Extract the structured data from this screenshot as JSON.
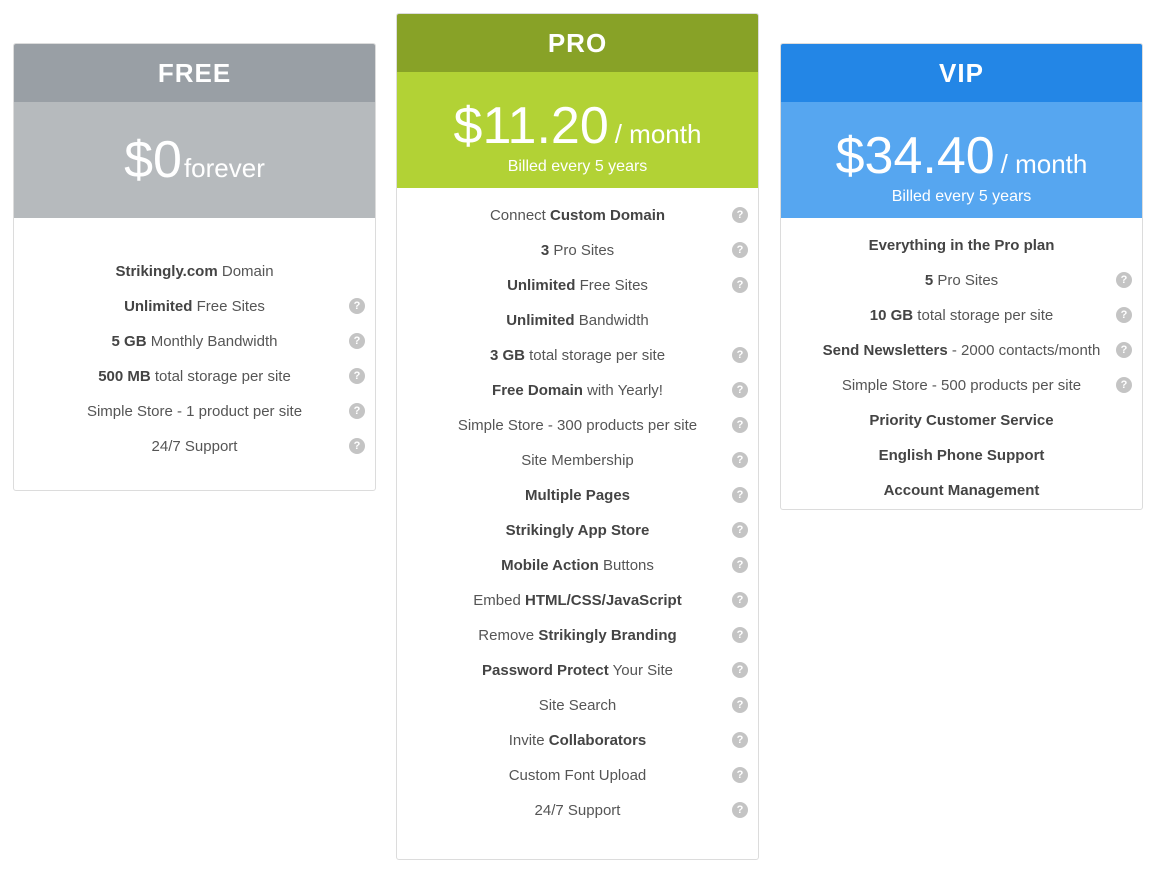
{
  "plans": [
    {
      "id": "free",
      "name": "FREE",
      "amount": "$0",
      "period": "forever",
      "billing": "",
      "header_color": "#999fa5",
      "price_color": "#b6babd",
      "features": [
        {
          "segments": [
            {
              "text": "Strikingly.com",
              "bold": true
            },
            {
              "text": " Domain",
              "bold": false
            }
          ],
          "help": false
        },
        {
          "segments": [
            {
              "text": "Unlimited",
              "bold": true
            },
            {
              "text": " Free Sites",
              "bold": false
            }
          ],
          "help": true
        },
        {
          "segments": [
            {
              "text": "5 GB",
              "bold": true
            },
            {
              "text": " Monthly Bandwidth",
              "bold": false
            }
          ],
          "help": true
        },
        {
          "segments": [
            {
              "text": "500 MB",
              "bold": true
            },
            {
              "text": " total storage per site",
              "bold": false
            }
          ],
          "help": true
        },
        {
          "segments": [
            {
              "text": "Simple Store - 1 product per site",
              "bold": false
            }
          ],
          "help": true
        },
        {
          "segments": [
            {
              "text": "24/7 Support",
              "bold": false
            }
          ],
          "help": true
        }
      ]
    },
    {
      "id": "pro",
      "name": "PRO",
      "amount": "$11.20",
      "period": "/ month",
      "billing": "Billed every 5 years",
      "header_color": "#88a227",
      "price_color": "#b2d235",
      "features": [
        {
          "segments": [
            {
              "text": "Connect ",
              "bold": false
            },
            {
              "text": "Custom Domain",
              "bold": true
            }
          ],
          "help": true
        },
        {
          "segments": [
            {
              "text": "3",
              "bold": true
            },
            {
              "text": " Pro Sites",
              "bold": false
            }
          ],
          "help": true
        },
        {
          "segments": [
            {
              "text": "Unlimited",
              "bold": true
            },
            {
              "text": " Free Sites",
              "bold": false
            }
          ],
          "help": true
        },
        {
          "segments": [
            {
              "text": "Unlimited",
              "bold": true
            },
            {
              "text": " Bandwidth",
              "bold": false
            }
          ],
          "help": false
        },
        {
          "segments": [
            {
              "text": "3 GB",
              "bold": true
            },
            {
              "text": " total storage per site",
              "bold": false
            }
          ],
          "help": true
        },
        {
          "segments": [
            {
              "text": "Free Domain",
              "bold": true
            },
            {
              "text": " with Yearly!",
              "bold": false
            }
          ],
          "help": true
        },
        {
          "segments": [
            {
              "text": "Simple Store - 300 products per site",
              "bold": false
            }
          ],
          "help": true
        },
        {
          "segments": [
            {
              "text": "Site Membership",
              "bold": false
            }
          ],
          "help": true
        },
        {
          "segments": [
            {
              "text": "Multiple Pages",
              "bold": true
            }
          ],
          "help": true
        },
        {
          "segments": [
            {
              "text": "Strikingly App Store",
              "bold": true
            }
          ],
          "help": true
        },
        {
          "segments": [
            {
              "text": "Mobile Action",
              "bold": true
            },
            {
              "text": " Buttons",
              "bold": false
            }
          ],
          "help": true
        },
        {
          "segments": [
            {
              "text": "Embed ",
              "bold": false
            },
            {
              "text": "HTML/CSS/JavaScript",
              "bold": true
            }
          ],
          "help": true
        },
        {
          "segments": [
            {
              "text": "Remove ",
              "bold": false
            },
            {
              "text": "Strikingly Branding",
              "bold": true
            }
          ],
          "help": true
        },
        {
          "segments": [
            {
              "text": "Password Protect",
              "bold": true
            },
            {
              "text": " Your Site",
              "bold": false
            }
          ],
          "help": true
        },
        {
          "segments": [
            {
              "text": "Site Search",
              "bold": false
            }
          ],
          "help": true
        },
        {
          "segments": [
            {
              "text": "Invite ",
              "bold": false
            },
            {
              "text": "Collaborators",
              "bold": true
            }
          ],
          "help": true
        },
        {
          "segments": [
            {
              "text": "Custom Font Upload",
              "bold": false
            }
          ],
          "help": true
        },
        {
          "segments": [
            {
              "text": "24/7 Support",
              "bold": false
            }
          ],
          "help": true
        }
      ]
    },
    {
      "id": "vip",
      "name": "VIP",
      "amount": "$34.40",
      "period": "/ month",
      "billing": "Billed every 5 years",
      "header_color": "#2386e6",
      "price_color": "#56a6f0",
      "features": [
        {
          "segments": [
            {
              "text": "Everything in the Pro plan",
              "bold": true
            }
          ],
          "help": false
        },
        {
          "segments": [
            {
              "text": "5",
              "bold": true
            },
            {
              "text": " Pro Sites",
              "bold": false
            }
          ],
          "help": true
        },
        {
          "segments": [
            {
              "text": "10 GB",
              "bold": true
            },
            {
              "text": " total storage per site",
              "bold": false
            }
          ],
          "help": true
        },
        {
          "segments": [
            {
              "text": "Send Newsletters",
              "bold": true
            },
            {
              "text": " - 2000 contacts/month",
              "bold": false
            }
          ],
          "help": true
        },
        {
          "segments": [
            {
              "text": "Simple Store - 500 products per site",
              "bold": false
            }
          ],
          "help": true
        },
        {
          "segments": [
            {
              "text": "Priority Customer Service",
              "bold": true
            }
          ],
          "help": false
        },
        {
          "segments": [
            {
              "text": "English Phone Support",
              "bold": true
            }
          ],
          "help": false
        },
        {
          "segments": [
            {
              "text": "Account Management",
              "bold": true
            }
          ],
          "help": false
        }
      ]
    }
  ],
  "help_icon": {
    "name": "question-circle-icon",
    "glyph": "?"
  }
}
